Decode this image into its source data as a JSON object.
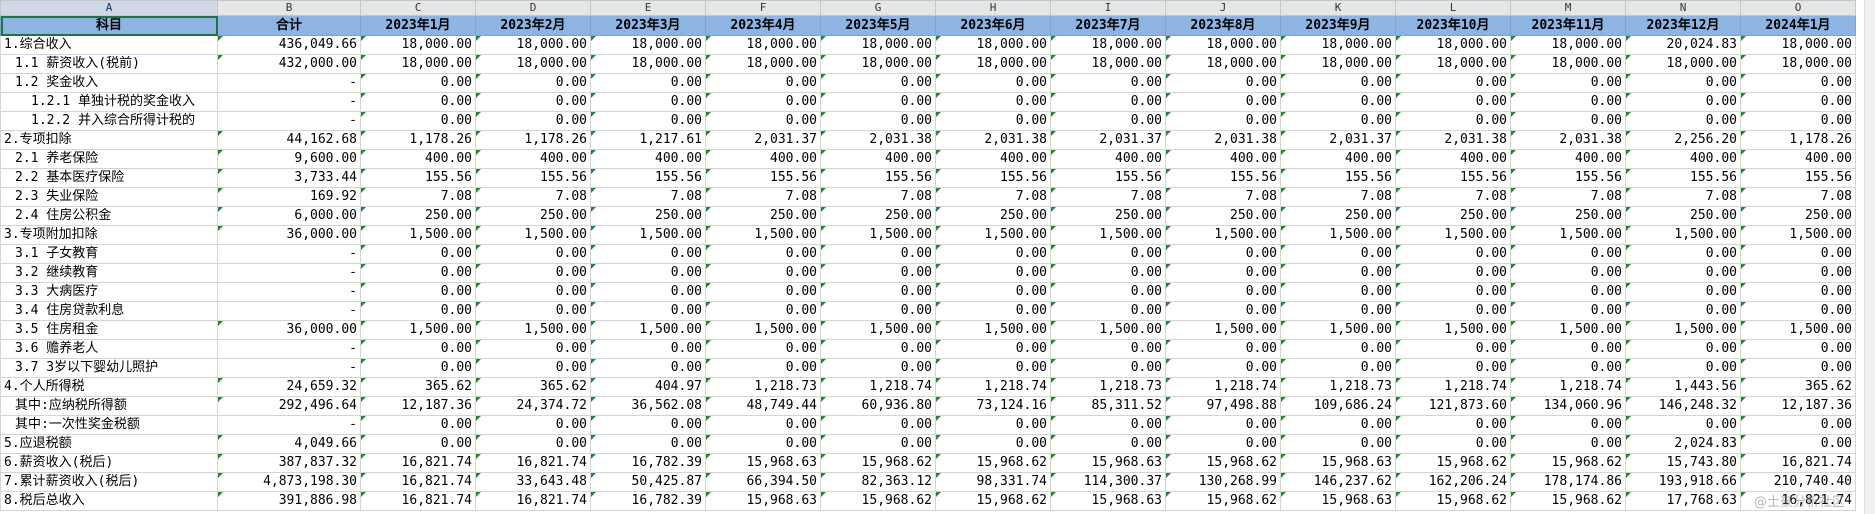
{
  "column_letters": [
    "A",
    "B",
    "C",
    "D",
    "E",
    "F",
    "G",
    "H",
    "I",
    "J",
    "K",
    "L",
    "M",
    "N",
    "O"
  ],
  "header": {
    "item": "科目",
    "total": "合计",
    "months": [
      "2023年1月",
      "2023年2月",
      "2023年3月",
      "2023年4月",
      "2023年5月",
      "2023年6月",
      "2023年7月",
      "2023年8月",
      "2023年9月",
      "2023年10月",
      "2023年11月",
      "2023年12月",
      "2024年1月"
    ]
  },
  "rows": [
    {
      "label": "1.综合收入",
      "level": 0,
      "total": "436,049.66",
      "values": [
        "18,000.00",
        "18,000.00",
        "18,000.00",
        "18,000.00",
        "18,000.00",
        "18,000.00",
        "18,000.00",
        "18,000.00",
        "18,000.00",
        "18,000.00",
        "18,000.00",
        "20,024.83",
        "18,000.00"
      ]
    },
    {
      "label": "1.1 薪资收入(税前)",
      "level": 1,
      "total": "432,000.00",
      "values": [
        "18,000.00",
        "18,000.00",
        "18,000.00",
        "18,000.00",
        "18,000.00",
        "18,000.00",
        "18,000.00",
        "18,000.00",
        "18,000.00",
        "18,000.00",
        "18,000.00",
        "18,000.00",
        "18,000.00"
      ]
    },
    {
      "label": "1.2 奖金收入",
      "level": 1,
      "total": "-",
      "values": [
        "0.00",
        "0.00",
        "0.00",
        "0.00",
        "0.00",
        "0.00",
        "0.00",
        "0.00",
        "0.00",
        "0.00",
        "0.00",
        "0.00",
        "0.00"
      ]
    },
    {
      "label": "1.2.1 单独计税的奖金收入",
      "level": 2,
      "total": "-",
      "values": [
        "0.00",
        "0.00",
        "0.00",
        "0.00",
        "0.00",
        "0.00",
        "0.00",
        "0.00",
        "0.00",
        "0.00",
        "0.00",
        "0.00",
        "0.00"
      ]
    },
    {
      "label": "1.2.2 并入综合所得计税的",
      "level": 2,
      "total": "-",
      "values": [
        "0.00",
        "0.00",
        "0.00",
        "0.00",
        "0.00",
        "0.00",
        "0.00",
        "0.00",
        "0.00",
        "0.00",
        "0.00",
        "0.00",
        "0.00"
      ]
    },
    {
      "label": "2.专项扣除",
      "level": 0,
      "total": "44,162.68",
      "values": [
        "1,178.26",
        "1,178.26",
        "1,217.61",
        "2,031.37",
        "2,031.38",
        "2,031.38",
        "2,031.37",
        "2,031.38",
        "2,031.37",
        "2,031.38",
        "2,031.38",
        "2,256.20",
        "1,178.26"
      ]
    },
    {
      "label": "2.1 养老保险",
      "level": 1,
      "total": "9,600.00",
      "values": [
        "400.00",
        "400.00",
        "400.00",
        "400.00",
        "400.00",
        "400.00",
        "400.00",
        "400.00",
        "400.00",
        "400.00",
        "400.00",
        "400.00",
        "400.00"
      ]
    },
    {
      "label": "2.2 基本医疗保险",
      "level": 1,
      "total": "3,733.44",
      "values": [
        "155.56",
        "155.56",
        "155.56",
        "155.56",
        "155.56",
        "155.56",
        "155.56",
        "155.56",
        "155.56",
        "155.56",
        "155.56",
        "155.56",
        "155.56"
      ]
    },
    {
      "label": "2.3 失业保险",
      "level": 1,
      "total": "169.92",
      "values": [
        "7.08",
        "7.08",
        "7.08",
        "7.08",
        "7.08",
        "7.08",
        "7.08",
        "7.08",
        "7.08",
        "7.08",
        "7.08",
        "7.08",
        "7.08"
      ]
    },
    {
      "label": "2.4 住房公积金",
      "level": 1,
      "total": "6,000.00",
      "values": [
        "250.00",
        "250.00",
        "250.00",
        "250.00",
        "250.00",
        "250.00",
        "250.00",
        "250.00",
        "250.00",
        "250.00",
        "250.00",
        "250.00",
        "250.00"
      ]
    },
    {
      "label": "3.专项附加扣除",
      "level": 0,
      "total": "36,000.00",
      "values": [
        "1,500.00",
        "1,500.00",
        "1,500.00",
        "1,500.00",
        "1,500.00",
        "1,500.00",
        "1,500.00",
        "1,500.00",
        "1,500.00",
        "1,500.00",
        "1,500.00",
        "1,500.00",
        "1,500.00"
      ]
    },
    {
      "label": "3.1 子女教育",
      "level": 1,
      "total": "-",
      "values": [
        "0.00",
        "0.00",
        "0.00",
        "0.00",
        "0.00",
        "0.00",
        "0.00",
        "0.00",
        "0.00",
        "0.00",
        "0.00",
        "0.00",
        "0.00"
      ]
    },
    {
      "label": "3.2 继续教育",
      "level": 1,
      "total": "-",
      "values": [
        "0.00",
        "0.00",
        "0.00",
        "0.00",
        "0.00",
        "0.00",
        "0.00",
        "0.00",
        "0.00",
        "0.00",
        "0.00",
        "0.00",
        "0.00"
      ]
    },
    {
      "label": "3.3 大病医疗",
      "level": 1,
      "total": "-",
      "values": [
        "0.00",
        "0.00",
        "0.00",
        "0.00",
        "0.00",
        "0.00",
        "0.00",
        "0.00",
        "0.00",
        "0.00",
        "0.00",
        "0.00",
        "0.00"
      ]
    },
    {
      "label": "3.4 住房贷款利息",
      "level": 1,
      "total": "-",
      "values": [
        "0.00",
        "0.00",
        "0.00",
        "0.00",
        "0.00",
        "0.00",
        "0.00",
        "0.00",
        "0.00",
        "0.00",
        "0.00",
        "0.00",
        "0.00"
      ]
    },
    {
      "label": "3.5 住房租金",
      "level": 1,
      "total": "36,000.00",
      "values": [
        "1,500.00",
        "1,500.00",
        "1,500.00",
        "1,500.00",
        "1,500.00",
        "1,500.00",
        "1,500.00",
        "1,500.00",
        "1,500.00",
        "1,500.00",
        "1,500.00",
        "1,500.00",
        "1,500.00"
      ]
    },
    {
      "label": "3.6 赡养老人",
      "level": 1,
      "total": "-",
      "values": [
        "0.00",
        "0.00",
        "0.00",
        "0.00",
        "0.00",
        "0.00",
        "0.00",
        "0.00",
        "0.00",
        "0.00",
        "0.00",
        "0.00",
        "0.00"
      ]
    },
    {
      "label": "3.7 3岁以下婴幼儿照护",
      "level": 1,
      "total": "-",
      "values": [
        "0.00",
        "0.00",
        "0.00",
        "0.00",
        "0.00",
        "0.00",
        "0.00",
        "0.00",
        "0.00",
        "0.00",
        "0.00",
        "0.00",
        "0.00"
      ]
    },
    {
      "label": "4.个人所得税",
      "level": 0,
      "total": "24,659.32",
      "values": [
        "365.62",
        "365.62",
        "404.97",
        "1,218.73",
        "1,218.74",
        "1,218.74",
        "1,218.73",
        "1,218.74",
        "1,218.73",
        "1,218.74",
        "1,218.74",
        "1,443.56",
        "365.62"
      ]
    },
    {
      "label": "其中:应纳税所得额",
      "level": 1,
      "total": "292,496.64",
      "values": [
        "12,187.36",
        "24,374.72",
        "36,562.08",
        "48,749.44",
        "60,936.80",
        "73,124.16",
        "85,311.52",
        "97,498.88",
        "109,686.24",
        "121,873.60",
        "134,060.96",
        "146,248.32",
        "12,187.36"
      ]
    },
    {
      "label": "其中:一次性奖金税额",
      "level": 1,
      "total": "-",
      "values": [
        "0.00",
        "0.00",
        "0.00",
        "0.00",
        "0.00",
        "0.00",
        "0.00",
        "0.00",
        "0.00",
        "0.00",
        "0.00",
        "0.00",
        "0.00"
      ]
    },
    {
      "label": "5.应退税额",
      "level": 0,
      "total": "4,049.66",
      "values": [
        "0.00",
        "0.00",
        "0.00",
        "0.00",
        "0.00",
        "0.00",
        "0.00",
        "0.00",
        "0.00",
        "0.00",
        "0.00",
        "2,024.83",
        "0.00"
      ]
    },
    {
      "label": "6.薪资收入(税后)",
      "level": 0,
      "total": "387,837.32",
      "values": [
        "16,821.74",
        "16,821.74",
        "16,782.39",
        "15,968.63",
        "15,968.62",
        "15,968.62",
        "15,968.63",
        "15,968.62",
        "15,968.63",
        "15,968.62",
        "15,968.62",
        "15,743.80",
        "16,821.74"
      ]
    },
    {
      "label": "7.累计薪资收入(税后)",
      "level": 0,
      "total": "4,873,198.30",
      "values": [
        "16,821.74",
        "33,643.48",
        "50,425.87",
        "66,394.50",
        "82,363.12",
        "98,331.74",
        "114,300.37",
        "130,268.99",
        "146,237.62",
        "162,206.24",
        "178,174.86",
        "193,918.66",
        "210,740.40"
      ]
    },
    {
      "label": "8.税后总收入",
      "level": 0,
      "total": "391,886.98",
      "values": [
        "16,821.74",
        "16,821.74",
        "16,782.39",
        "15,968.63",
        "15,968.62",
        "15,968.62",
        "15,968.63",
        "15,968.62",
        "15,968.63",
        "15,968.62",
        "15,968.62",
        "17,768.63",
        "16,821.74"
      ]
    }
  ],
  "watermark": "@土豪分析社区"
}
